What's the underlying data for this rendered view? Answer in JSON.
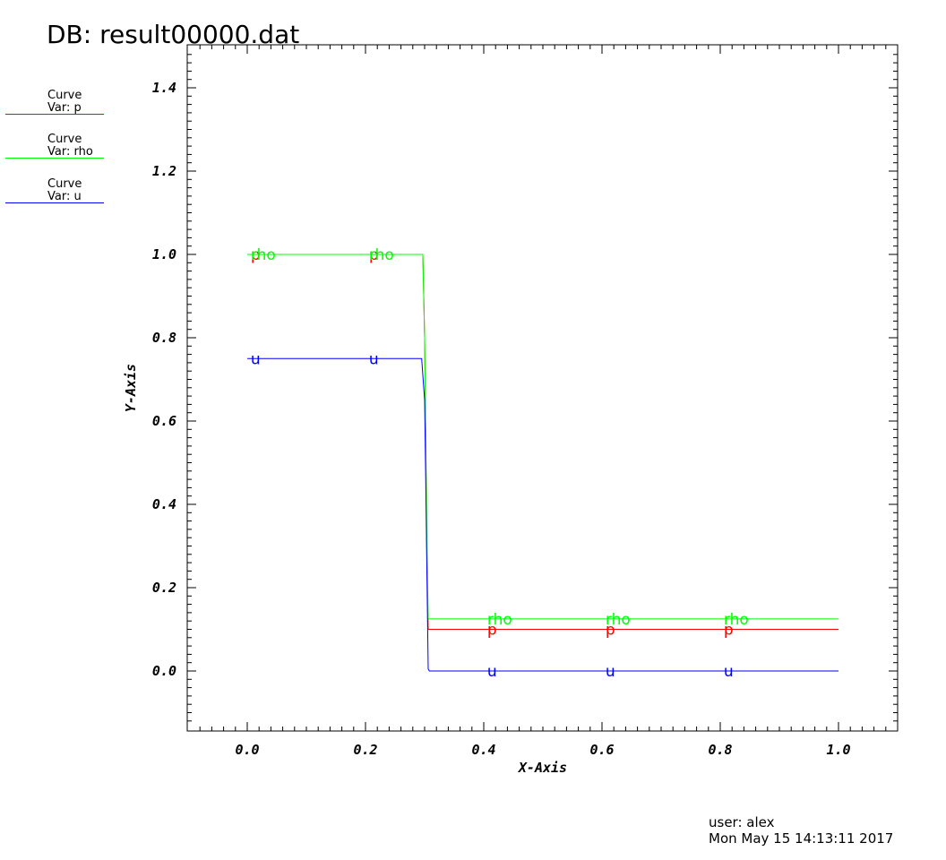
{
  "header": {
    "title": "DB: result00000.dat"
  },
  "legend": [
    {
      "line1": "Curve",
      "line2": "Var: p",
      "color": "#ff0000"
    },
    {
      "line1": "Curve",
      "line2": "Var: rho",
      "color": "#00ff00"
    },
    {
      "line1": "Curve",
      "line2": "Var: u",
      "color": "#0000ff"
    }
  ],
  "footer": {
    "user": "user: alex",
    "timestamp": "Mon May 15 14:13:11 2017"
  },
  "chart_data": {
    "type": "line",
    "title": "DB: result00000.dat",
    "xlabel": "X-Axis",
    "ylabel": "Y-Axis",
    "xlim": [
      -0.1,
      1.1
    ],
    "ylim": [
      -0.145,
      1.5
    ],
    "xticks": [
      "0.0",
      "0.2",
      "0.4",
      "0.6",
      "0.8",
      "1.0"
    ],
    "yticks": [
      "0.0",
      "0.2",
      "0.4",
      "0.6",
      "0.8",
      "1.0",
      "1.2",
      "1.4"
    ],
    "grid": false,
    "legend_position": "top-left",
    "series": [
      {
        "name": "p",
        "color": "#ff0000",
        "marker_label": "p",
        "points": [
          [
            0.0,
            1.0
          ],
          [
            0.297,
            1.0
          ],
          [
            0.3,
            0.8
          ],
          [
            0.302,
            0.55
          ],
          [
            0.304,
            0.25
          ],
          [
            0.306,
            0.1
          ],
          [
            1.0,
            0.1
          ]
        ]
      },
      {
        "name": "rho",
        "color": "#00ff00",
        "marker_label": "rho",
        "points": [
          [
            0.0,
            1.0
          ],
          [
            0.297,
            1.0
          ],
          [
            0.298,
            0.93
          ],
          [
            0.3,
            0.8
          ],
          [
            0.302,
            0.55
          ],
          [
            0.304,
            0.3
          ],
          [
            0.306,
            0.125
          ],
          [
            1.0,
            0.125
          ]
        ]
      },
      {
        "name": "u",
        "color": "#0000ff",
        "marker_label": "u",
        "points": [
          [
            0.0,
            0.75
          ],
          [
            0.295,
            0.75
          ],
          [
            0.3,
            0.65
          ],
          [
            0.302,
            0.45
          ],
          [
            0.304,
            0.23
          ],
          [
            0.306,
            0.005
          ],
          [
            0.308,
            0.0
          ],
          [
            1.0,
            0.0
          ]
        ]
      }
    ],
    "marker_labels": [
      {
        "series": "p",
        "x": 0.015,
        "y": 1.0
      },
      {
        "series": "p",
        "x": 0.215,
        "y": 1.0
      },
      {
        "series": "p",
        "x": 0.415,
        "y": 0.1
      },
      {
        "series": "p",
        "x": 0.615,
        "y": 0.1
      },
      {
        "series": "p",
        "x": 0.815,
        "y": 0.1
      },
      {
        "series": "rho",
        "x": 0.015,
        "y": 1.0
      },
      {
        "series": "rho",
        "x": 0.215,
        "y": 1.0
      },
      {
        "series": "rho",
        "x": 0.415,
        "y": 0.125
      },
      {
        "series": "rho",
        "x": 0.615,
        "y": 0.125
      },
      {
        "series": "rho",
        "x": 0.815,
        "y": 0.125
      },
      {
        "series": "u",
        "x": 0.015,
        "y": 0.75
      },
      {
        "series": "u",
        "x": 0.215,
        "y": 0.75
      },
      {
        "series": "u",
        "x": 0.415,
        "y": 0.0
      },
      {
        "series": "u",
        "x": 0.615,
        "y": 0.0
      },
      {
        "series": "u",
        "x": 0.815,
        "y": 0.0
      }
    ]
  }
}
